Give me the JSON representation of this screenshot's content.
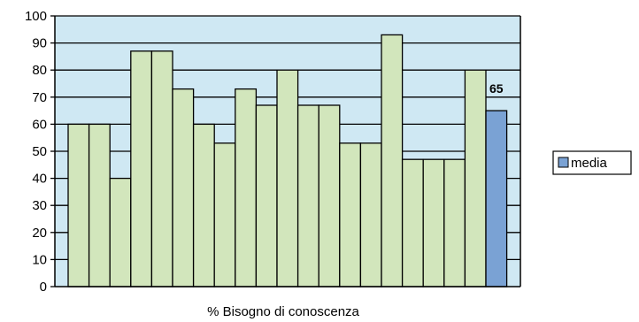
{
  "chart_data": {
    "type": "bar",
    "xlabel": "% Bisogno di conoscenza",
    "ylim": [
      0,
      100
    ],
    "yticks": [
      0,
      10,
      20,
      30,
      40,
      50,
      60,
      70,
      80,
      90,
      100
    ],
    "values": [
      60,
      60,
      40,
      87,
      87,
      73,
      60,
      53,
      73,
      67,
      80,
      67,
      67,
      53,
      53,
      93,
      47,
      47,
      47,
      80,
      65
    ],
    "highlight": {
      "index": 20,
      "value_label": "65",
      "color": "#7aa2d4"
    },
    "bar_color": "#d2e6bc",
    "plot_bg": "#cfe8f3",
    "legend": {
      "position": "right",
      "entries": [
        {
          "name": "media",
          "color": "#7aa2d4"
        }
      ]
    }
  }
}
